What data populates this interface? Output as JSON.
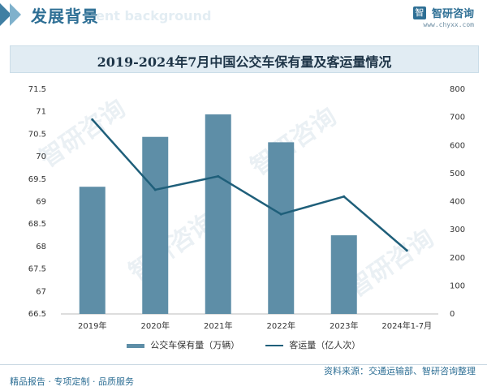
{
  "header": {
    "title": "发展背景",
    "subtitle_en": "ent background",
    "brand_name": "智研咨询",
    "brand_url": "www.chyxx.com",
    "logo_glyph": "智"
  },
  "chart_title": "2019-2024年7月中国公交车保有量及客运量情况",
  "legend": {
    "bar_label": "公交车保有量（万辆）",
    "line_label": "客运量（亿人次）"
  },
  "footer": {
    "left": "精品报告 · 专项定制 · 品质服务",
    "source": "资料来源：交通运输部、智研咨询整理"
  },
  "watermark_text": "智研咨询",
  "colors": {
    "bar": "#5e8ea7",
    "line": "#1f5f7a",
    "accent": "#2e6f95"
  },
  "chart_data": {
    "type": "bar",
    "categories": [
      "2019年",
      "2020年",
      "2021年",
      "2022年",
      "2023年",
      "2024年1-7月"
    ],
    "series": [
      {
        "name": "公交车保有量（万辆）",
        "type": "bar",
        "axis": "left",
        "values": [
          69.33,
          70.44,
          70.94,
          70.32,
          68.25,
          null
        ]
      },
      {
        "name": "客运量（亿人次）",
        "type": "line",
        "axis": "right",
        "values": [
          692,
          442,
          490,
          355,
          418,
          226
        ]
      }
    ],
    "y_left": {
      "min": 66.5,
      "max": 71.5,
      "ticks": [
        "66.5",
        "67",
        "67.5",
        "68",
        "68.5",
        "69",
        "69.5",
        "70",
        "70.5",
        "71",
        "71.5"
      ]
    },
    "y_right": {
      "min": 0,
      "max": 800,
      "ticks": [
        "0",
        "100",
        "200",
        "300",
        "400",
        "500",
        "600",
        "700",
        "800"
      ]
    },
    "grid": false
  }
}
